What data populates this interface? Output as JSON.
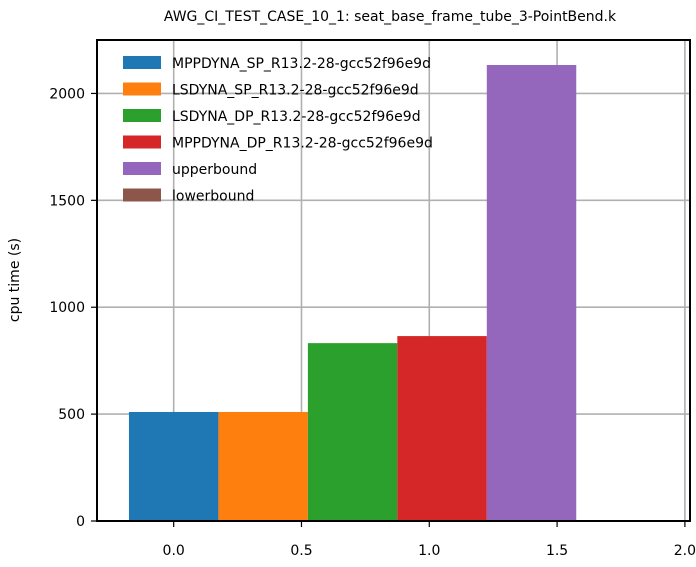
{
  "chart_data": {
    "type": "bar",
    "title": "AWG_CI_TEST_CASE_10_1: seat_base_frame_tube_3-PointBend.k",
    "xlabel": "",
    "ylabel": "cpu time (s)",
    "xlim": [
      -0.3,
      2.02
    ],
    "ylim": [
      0,
      2250
    ],
    "grid": true,
    "legend_position": "top-left",
    "x_ticks": [
      "0.0",
      "0.5",
      "1.0",
      "1.5",
      "2.0"
    ],
    "y_ticks": [
      "0",
      "500",
      "1000",
      "1500",
      "2000"
    ],
    "bar_width": 0.35,
    "series": [
      {
        "name": "MPPDYNA_SP_R13.2-28-gcc52f96e9d",
        "color": "#1f77b4",
        "x": 0.0,
        "value": 510
      },
      {
        "name": "LSDYNA_SP_R13.2-28-gcc52f96e9d",
        "color": "#ff7f0e",
        "x": 0.35,
        "value": 510
      },
      {
        "name": "LSDYNA_DP_R13.2-28-gcc52f96e9d",
        "color": "#2ca02c",
        "x": 0.7,
        "value": 832
      },
      {
        "name": "MPPDYNA_DP_R13.2-28-gcc52f96e9d",
        "color": "#d62728",
        "x": 1.05,
        "value": 865
      },
      {
        "name": "upperbound",
        "color": "#9467bd",
        "x": 1.4,
        "value": 2133
      },
      {
        "name": "lowerbound",
        "color": "#8c564b",
        "x": 1.75,
        "value": 0
      }
    ]
  }
}
